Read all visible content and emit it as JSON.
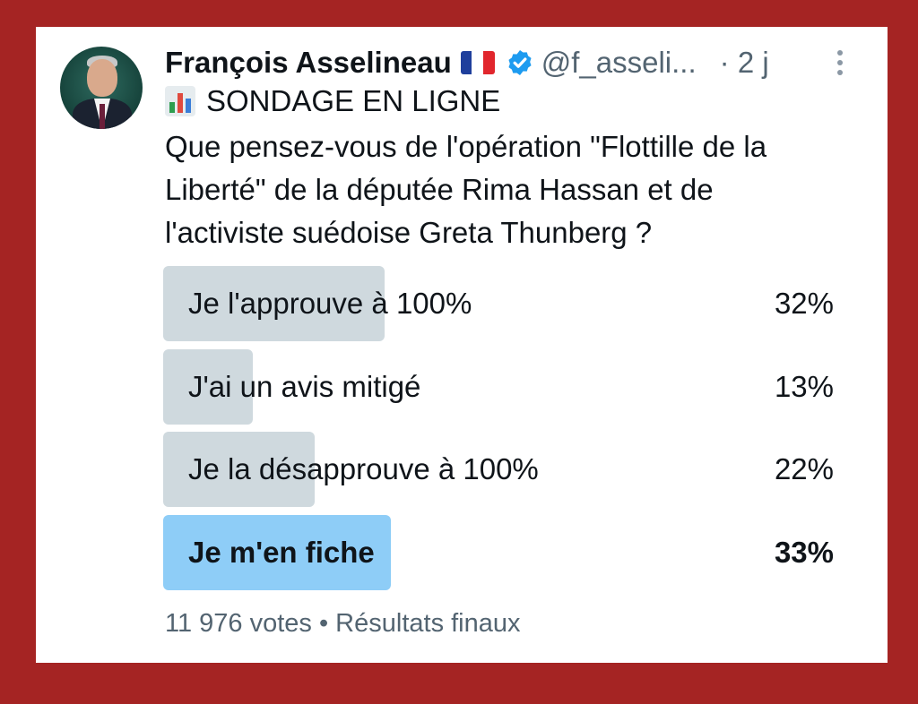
{
  "tweet": {
    "author_name": "François Asselineau",
    "flag_icon": "france-flag-icon",
    "verified_icon": "verified-badge-icon",
    "handle": "@f_asseli...",
    "time": "· 2 j",
    "title": "SONDAGE EN LIGNE",
    "title_icon": "bar-chart-icon",
    "question": "Que pensez-vous de l'opération \"Flottille de la\nLiberté\" de la députée Rima Hassan et de\nl'activiste suédoise Greta Thunberg  ?"
  },
  "poll": {
    "options": [
      {
        "label": "Je l'approuve à 100%",
        "percent": "32%",
        "value": 0.32,
        "winner": false
      },
      {
        "label": "J'ai un avis mitigé",
        "percent": "13%",
        "value": 0.13,
        "winner": false
      },
      {
        "label": "Je la désapprouve à 100%",
        "percent": "22%",
        "value": 0.22,
        "winner": false
      },
      {
        "label": "Je m'en fiche",
        "percent": "33%",
        "value": 0.33,
        "winner": true
      }
    ],
    "footer": "11 976 votes • Résultats finaux"
  },
  "colors": {
    "frame": "#a52423",
    "bar": "#cfd9de",
    "bar_winner": "#8ecdf7",
    "verified": "#1d9bf0"
  }
}
